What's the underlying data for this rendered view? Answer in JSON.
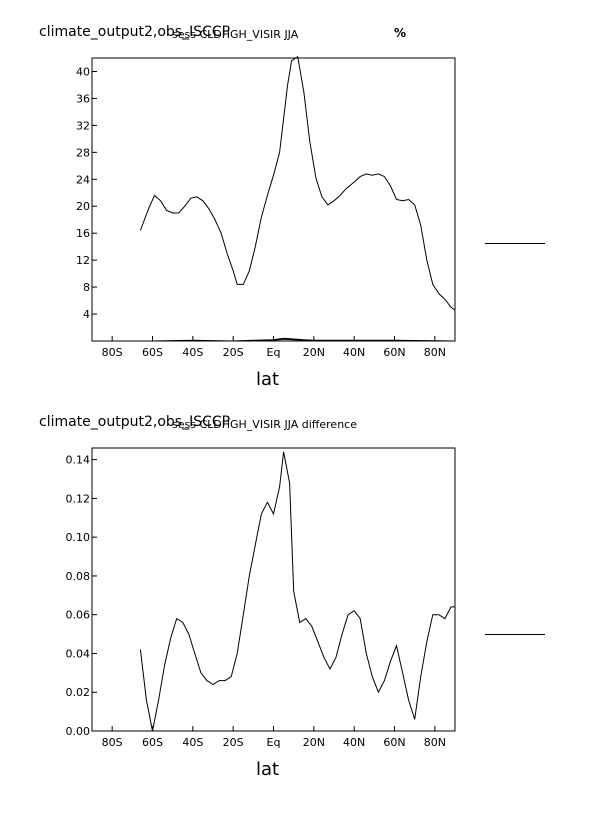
{
  "chart_data": [
    {
      "type": "line",
      "title": "climate_output2,obs_ISCCP",
      "subtitle": "sess CLDHGH_VISIR JJA",
      "units": "%",
      "xlabel": "lat",
      "ylabel": "",
      "xlim": [
        -90,
        90
      ],
      "ylim": [
        0,
        42
      ],
      "xticks": [
        -80,
        -60,
        -40,
        -20,
        0,
        20,
        40,
        60,
        80
      ],
      "xtick_labels": [
        "80S",
        "60S",
        "40S",
        "20S",
        "Eq",
        "20N",
        "40N",
        "60N",
        "80N"
      ],
      "yticks": [
        4,
        8,
        12,
        16,
        20,
        24,
        28,
        32,
        36,
        40
      ],
      "ytick_labels": [
        "4",
        "8",
        "12",
        "16",
        "20",
        "24",
        "28",
        "32",
        "36",
        "40"
      ],
      "series": [
        {
          "x": [
            -66,
            -62,
            -59,
            -56,
            -53,
            -50,
            -47,
            -44,
            -41,
            -38,
            -35,
            -32,
            -29,
            -26,
            -23,
            -20,
            -18,
            -15,
            -12,
            -9,
            -6,
            -3,
            0,
            3,
            5,
            7,
            9,
            12,
            15,
            18,
            21,
            24,
            27,
            30,
            33,
            36,
            40,
            43,
            46,
            49,
            52,
            55,
            58,
            61,
            64,
            67,
            70,
            73,
            76,
            79,
            82,
            85,
            88,
            90
          ],
          "values": [
            16.4,
            19.6,
            21.6,
            20.8,
            19.4,
            19.0,
            19.0,
            20.0,
            21.2,
            21.4,
            20.8,
            19.6,
            18.0,
            16.0,
            13.0,
            10.4,
            8.4,
            8.4,
            10.4,
            14.0,
            18.4,
            21.6,
            24.6,
            28.0,
            33.0,
            38.0,
            41.6,
            42.2,
            37.0,
            29.6,
            24.2,
            21.4,
            20.2,
            20.8,
            21.6,
            22.6,
            23.6,
            24.4,
            24.8,
            24.6,
            24.8,
            24.4,
            23.0,
            21.0,
            20.8,
            21.0,
            20.2,
            17.2,
            12.0,
            8.4,
            7.0,
            6.2,
            5.0,
            4.6
          ]
        },
        {
          "x": [
            -90,
            -60,
            -40,
            -20,
            -10,
            0,
            5,
            10,
            15,
            20,
            40,
            60,
            90
          ],
          "values": [
            0.0,
            0.0,
            0.1,
            0.0,
            0.1,
            0.2,
            0.4,
            0.3,
            0.2,
            0.1,
            0.1,
            0.1,
            0.0
          ]
        },
        {
          "x": [
            -90,
            -60,
            -40,
            -20,
            -10,
            0,
            5,
            10,
            15,
            20,
            40,
            60,
            90
          ],
          "values": [
            0.0,
            0.0,
            0.0,
            0.0,
            0.05,
            0.1,
            0.25,
            0.2,
            0.1,
            0.05,
            0.0,
            0.0,
            0.0
          ]
        }
      ]
    },
    {
      "type": "line",
      "title": "climate_output2,obs_ISCCP",
      "subtitle": "sess CLDHGH_VISIR JJA difference",
      "xlabel": "lat",
      "ylabel": "",
      "xlim": [
        -90,
        90
      ],
      "ylim": [
        0,
        0.146
      ],
      "xticks": [
        -80,
        -60,
        -40,
        -20,
        0,
        20,
        40,
        60,
        80
      ],
      "xtick_labels": [
        "80S",
        "60S",
        "40S",
        "20S",
        "Eq",
        "20N",
        "40N",
        "60N",
        "80N"
      ],
      "yticks": [
        0,
        0.02,
        0.04,
        0.06,
        0.08,
        0.1,
        0.12,
        0.14
      ],
      "ytick_labels": [
        "0.00",
        "0.02",
        "0.04",
        "0.06",
        "0.08",
        "0.10",
        "0.12",
        "0.14"
      ],
      "series": [
        {
          "x": [
            -66,
            -63,
            -60,
            -57,
            -54,
            -51,
            -48,
            -45,
            -42,
            -39,
            -36,
            -33,
            -30,
            -27,
            -24,
            -21,
            -18,
            -15,
            -12,
            -9,
            -6,
            -3,
            0,
            3,
            5,
            8,
            10,
            13,
            16,
            19,
            22,
            25,
            28,
            31,
            34,
            37,
            40,
            43,
            46,
            49,
            52,
            55,
            58,
            61,
            64,
            67,
            70,
            73,
            76,
            79,
            82,
            85,
            88,
            90
          ],
          "values": [
            0.042,
            0.016,
            0.0,
            0.016,
            0.034,
            0.048,
            0.058,
            0.056,
            0.05,
            0.04,
            0.03,
            0.026,
            0.024,
            0.026,
            0.026,
            0.028,
            0.04,
            0.06,
            0.08,
            0.096,
            0.112,
            0.118,
            0.112,
            0.126,
            0.144,
            0.128,
            0.072,
            0.056,
            0.058,
            0.054,
            0.046,
            0.038,
            0.032,
            0.038,
            0.05,
            0.06,
            0.062,
            0.058,
            0.04,
            0.028,
            0.02,
            0.026,
            0.036,
            0.044,
            0.03,
            0.016,
            0.006,
            0.028,
            0.046,
            0.06,
            0.06,
            0.058,
            0.064,
            0.064
          ]
        }
      ]
    }
  ]
}
